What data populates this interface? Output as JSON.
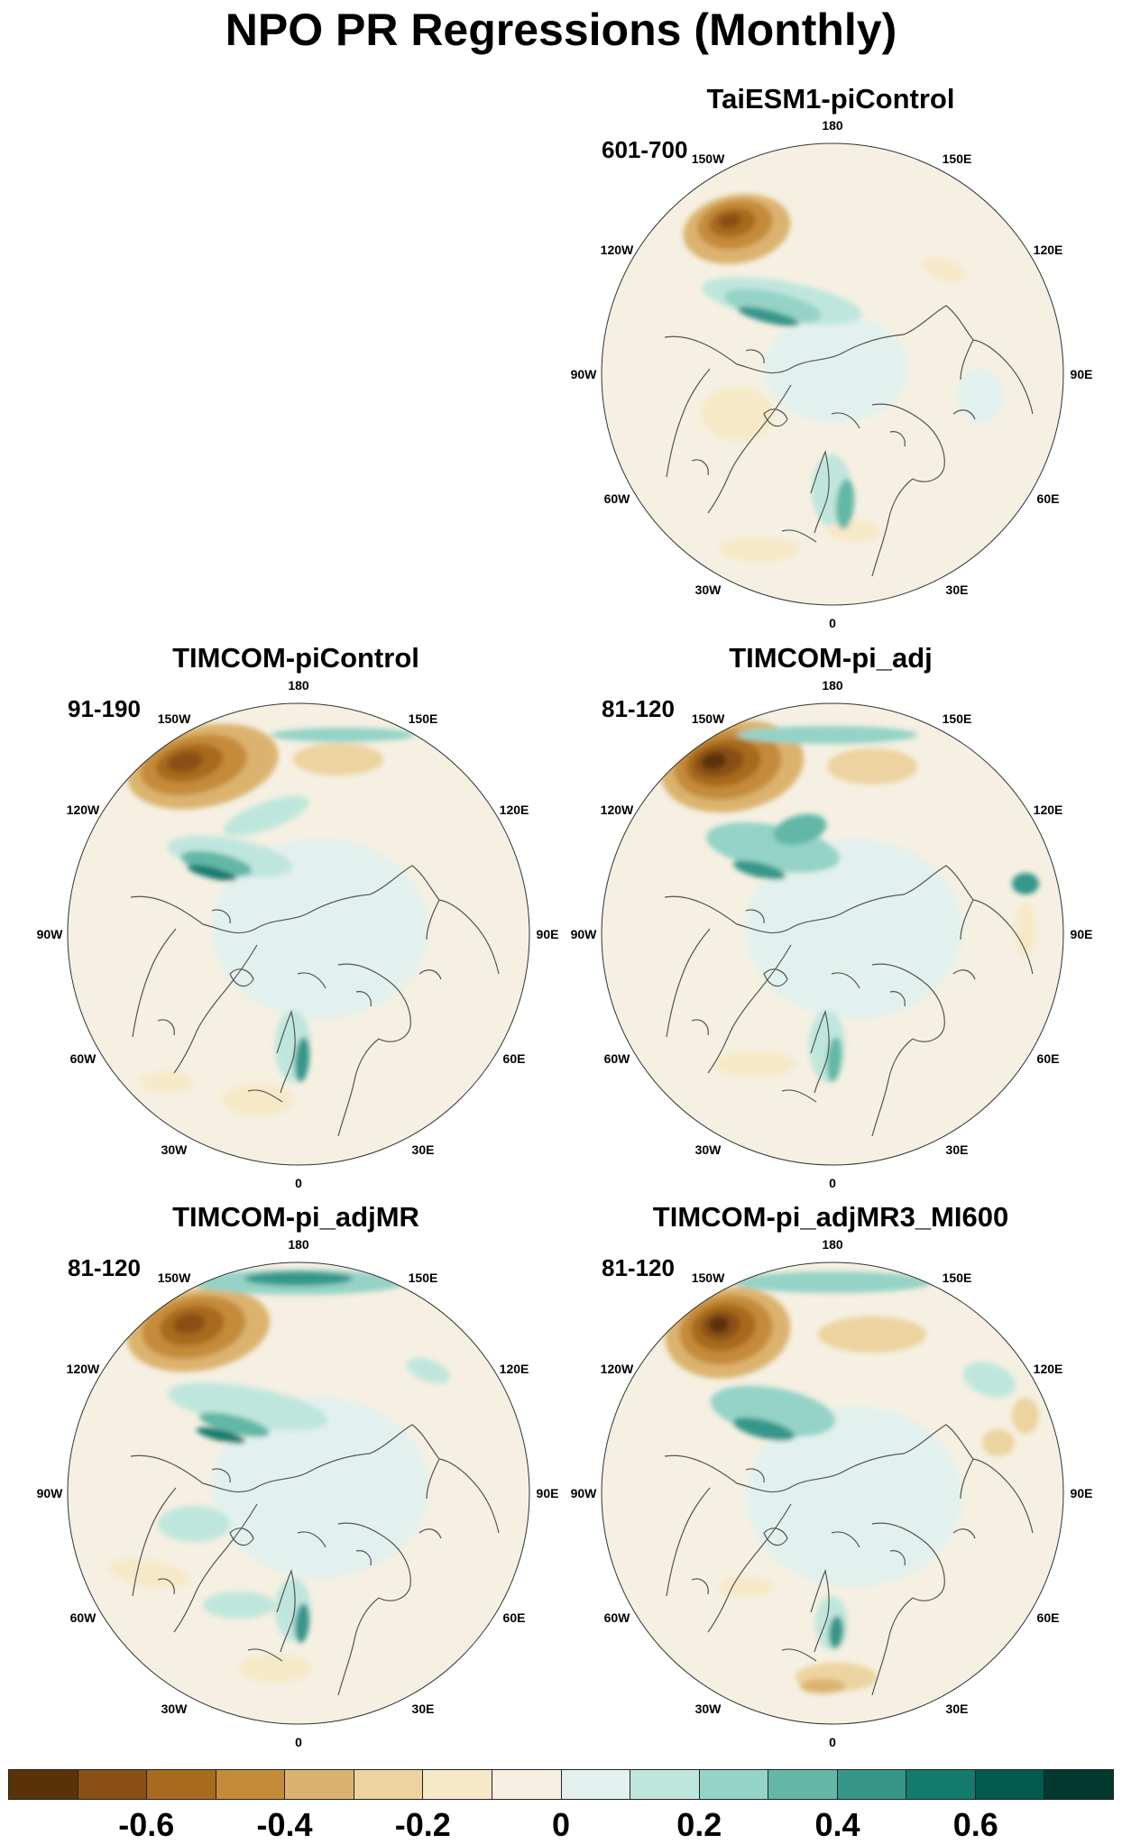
{
  "title": "NPO PR Regressions (Monthly)",
  "panels": [
    {
      "name": "TaiESM1-piControl",
      "period": "601-700"
    },
    {
      "name": "TIMCOM-piControl",
      "period": "91-190"
    },
    {
      "name": "TIMCOM-pi_adj",
      "period": "81-120"
    },
    {
      "name": "TIMCOM-pi_adjMR",
      "period": "81-120"
    },
    {
      "name": "TIMCOM-pi_adjMR3_MI600",
      "period": "81-120"
    }
  ],
  "longitude_labels": [
    "180",
    "150E",
    "120E",
    "90E",
    "60E",
    "30E",
    "0",
    "30W",
    "60W",
    "90W",
    "120W",
    "150W"
  ],
  "colorbar": {
    "colors": [
      "#5a3208",
      "#8a4f12",
      "#a86a1f",
      "#c58b3a",
      "#dcb36e",
      "#ecd39f",
      "#f6e9c8",
      "#f5f0e2",
      "#e2f1ee",
      "#bfe6dd",
      "#94d3c6",
      "#62b7a6",
      "#36968a",
      "#137a6d",
      "#035a4e",
      "#01392f"
    ],
    "labels": [
      "-0.6",
      "-0.4",
      "-0.2",
      "0",
      "0.2",
      "0.4",
      "0.6"
    ],
    "label_boundaries": [
      2,
      4,
      6,
      8,
      10,
      12,
      14
    ]
  }
}
